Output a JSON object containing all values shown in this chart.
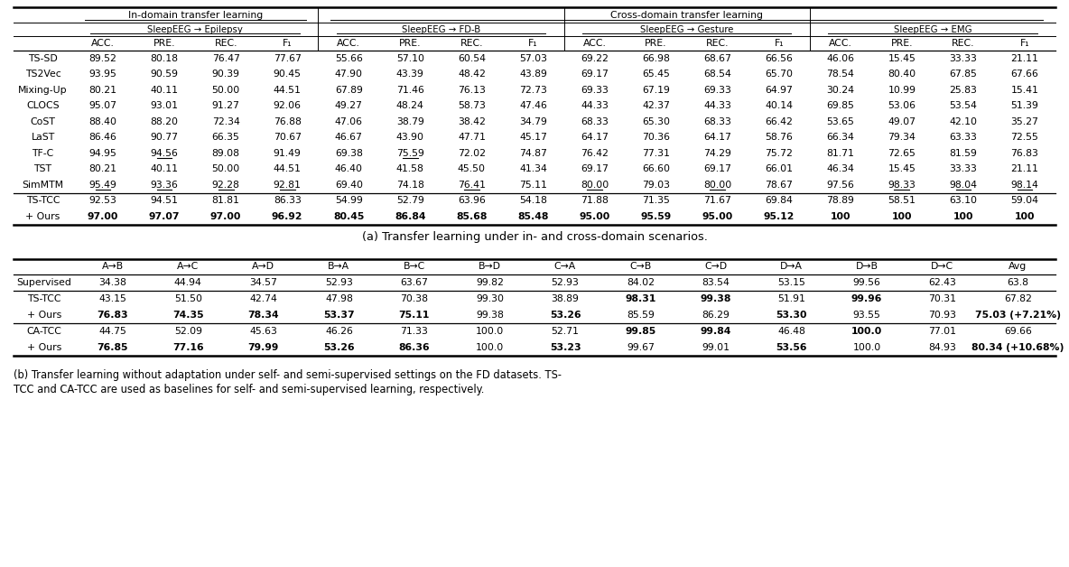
{
  "table_a": {
    "rows": [
      {
        "method": "TS-SD",
        "data": [
          "89.52",
          "80.18",
          "76.47",
          "77.67",
          "55.66",
          "57.10",
          "60.54",
          "57.03",
          "69.22",
          "66.98",
          "68.67",
          "66.56",
          "46.06",
          "15.45",
          "33.33",
          "21.11"
        ],
        "bold": [],
        "underline": []
      },
      {
        "method": "TS2Vec",
        "data": [
          "93.95",
          "90.59",
          "90.39",
          "90.45",
          "47.90",
          "43.39",
          "48.42",
          "43.89",
          "69.17",
          "65.45",
          "68.54",
          "65.70",
          "78.54",
          "80.40",
          "67.85",
          "67.66"
        ],
        "bold": [],
        "underline": []
      },
      {
        "method": "Mixing-Up",
        "data": [
          "80.21",
          "40.11",
          "50.00",
          "44.51",
          "67.89",
          "71.46",
          "76.13",
          "72.73",
          "69.33",
          "67.19",
          "69.33",
          "64.97",
          "30.24",
          "10.99",
          "25.83",
          "15.41"
        ],
        "bold": [],
        "underline": []
      },
      {
        "method": "CLOCS",
        "data": [
          "95.07",
          "93.01",
          "91.27",
          "92.06",
          "49.27",
          "48.24",
          "58.73",
          "47.46",
          "44.33",
          "42.37",
          "44.33",
          "40.14",
          "69.85",
          "53.06",
          "53.54",
          "51.39"
        ],
        "bold": [],
        "underline": []
      },
      {
        "method": "CoST",
        "data": [
          "88.40",
          "88.20",
          "72.34",
          "76.88",
          "47.06",
          "38.79",
          "38.42",
          "34.79",
          "68.33",
          "65.30",
          "68.33",
          "66.42",
          "53.65",
          "49.07",
          "42.10",
          "35.27"
        ],
        "bold": [],
        "underline": []
      },
      {
        "method": "LaST",
        "data": [
          "86.46",
          "90.77",
          "66.35",
          "70.67",
          "46.67",
          "43.90",
          "47.71",
          "45.17",
          "64.17",
          "70.36",
          "64.17",
          "58.76",
          "66.34",
          "79.34",
          "63.33",
          "72.55"
        ],
        "bold": [],
        "underline": []
      },
      {
        "method": "TF-C",
        "data": [
          "94.95",
          "94.56",
          "89.08",
          "91.49",
          "69.38",
          "75.59",
          "72.02",
          "74.87",
          "76.42",
          "77.31",
          "74.29",
          "75.72",
          "81.71",
          "72.65",
          "81.59",
          "76.83"
        ],
        "bold": [],
        "underline": [
          1,
          5
        ]
      },
      {
        "method": "TST",
        "data": [
          "80.21",
          "40.11",
          "50.00",
          "44.51",
          "46.40",
          "41.58",
          "45.50",
          "41.34",
          "69.17",
          "66.60",
          "69.17",
          "66.01",
          "46.34",
          "15.45",
          "33.33",
          "21.11"
        ],
        "bold": [],
        "underline": []
      },
      {
        "method": "SimMTM",
        "data": [
          "95.49",
          "93.36",
          "92.28",
          "92.81",
          "69.40",
          "74.18",
          "76.41",
          "75.11",
          "80.00",
          "79.03",
          "80.00",
          "78.67",
          "97.56",
          "98.33",
          "98.04",
          "98.14"
        ],
        "bold": [],
        "underline": [
          0,
          1,
          2,
          3,
          6,
          8,
          10,
          13,
          14,
          15
        ]
      }
    ],
    "baseline_row": {
      "method": "TS-TCC",
      "data": [
        "92.53",
        "94.51",
        "81.81",
        "86.33",
        "54.99",
        "52.79",
        "63.96",
        "54.18",
        "71.88",
        "71.35",
        "71.67",
        "69.84",
        "78.89",
        "58.51",
        "63.10",
        "59.04"
      ],
      "bold": []
    },
    "ours_row": {
      "method": "+ Ours",
      "data": [
        "97.00",
        "97.07",
        "97.00",
        "96.92",
        "80.45",
        "86.84",
        "85.68",
        "85.48",
        "95.00",
        "95.59",
        "95.00",
        "95.12",
        "100",
        "100",
        "100",
        "100"
      ],
      "bold": [
        0,
        1,
        2,
        3,
        4,
        5,
        6,
        7,
        8,
        9,
        10,
        11,
        12,
        13,
        14,
        15
      ]
    }
  },
  "caption_a": "(a) Transfer learning under in- and cross-domain scenarios.",
  "table_b": {
    "cols": [
      "A→B",
      "A→C",
      "A→D",
      "B→A",
      "B→C",
      "B→D",
      "C→A",
      "C→B",
      "C→D",
      "D→A",
      "D→B",
      "D→C",
      "Avg"
    ],
    "rows": [
      {
        "method": "Supervised",
        "data": [
          "34.38",
          "44.94",
          "34.57",
          "52.93",
          "63.67",
          "99.82",
          "52.93",
          "84.02",
          "83.54",
          "53.15",
          "99.56",
          "62.43",
          "63.8"
        ],
        "bold": []
      },
      {
        "method": "TS-TCC",
        "data": [
          "43.15",
          "51.50",
          "42.74",
          "47.98",
          "70.38",
          "99.30",
          "38.89",
          "98.31",
          "99.38",
          "51.91",
          "99.96",
          "70.31",
          "67.82"
        ],
        "bold": [
          7,
          8,
          10
        ]
      },
      {
        "method": "+ Ours",
        "data": [
          "76.83",
          "74.35",
          "78.34",
          "53.37",
          "75.11",
          "99.38",
          "53.26",
          "85.59",
          "86.29",
          "53.30",
          "93.55",
          "70.93",
          "75.03 (+7.21%)"
        ],
        "bold": [
          0,
          1,
          2,
          3,
          4,
          6,
          9,
          12
        ]
      },
      {
        "method": "CA-TCC",
        "data": [
          "44.75",
          "52.09",
          "45.63",
          "46.26",
          "71.33",
          "100.0",
          "52.71",
          "99.85",
          "99.84",
          "46.48",
          "100.0",
          "77.01",
          "69.66"
        ],
        "bold": [
          7,
          8,
          10
        ]
      },
      {
        "method": "+ Ours",
        "data": [
          "76.85",
          "77.16",
          "79.99",
          "53.26",
          "86.36",
          "100.0",
          "53.23",
          "99.67",
          "99.01",
          "53.56",
          "100.0",
          "84.93",
          "80.34 (+10.68%)"
        ],
        "bold": [
          0,
          1,
          2,
          3,
          4,
          6,
          9,
          12
        ]
      }
    ]
  },
  "caption_b_line1": "(b) Transfer learning without adaptation under self- and semi-supervised settings on the FD datasets. TS-",
  "caption_b_line2": "TCC and CA-TCC are used as baselines for self- and semi-supervised learning, respectively.",
  "bg_color": "#ffffff"
}
